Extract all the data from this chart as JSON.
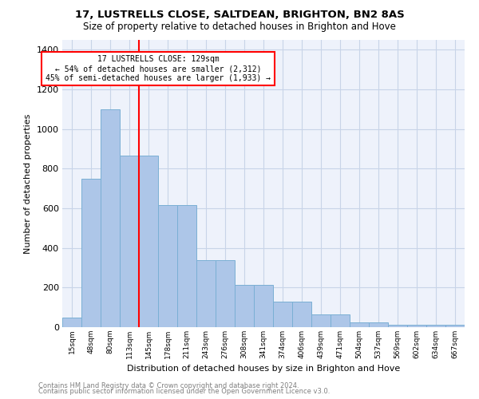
{
  "title1": "17, LUSTRELLS CLOSE, SALTDEAN, BRIGHTON, BN2 8AS",
  "title2": "Size of property relative to detached houses in Brighton and Hove",
  "xlabel": "Distribution of detached houses by size in Brighton and Hove",
  "ylabel": "Number of detached properties",
  "categories": [
    "15sqm",
    "48sqm",
    "80sqm",
    "113sqm",
    "145sqm",
    "178sqm",
    "211sqm",
    "243sqm",
    "276sqm",
    "308sqm",
    "341sqm",
    "374sqm",
    "406sqm",
    "439sqm",
    "471sqm",
    "504sqm",
    "537sqm",
    "569sqm",
    "602sqm",
    "634sqm",
    "667sqm"
  ],
  "values": [
    50,
    750,
    1100,
    865,
    865,
    615,
    615,
    340,
    340,
    215,
    215,
    130,
    130,
    65,
    65,
    25,
    25,
    13,
    13,
    13,
    13
  ],
  "bar_color": "#adc6e8",
  "bar_edge_color": "#7aafd4",
  "annotation_text_line1": "17 LUSTRELLS CLOSE: 129sqm",
  "annotation_text_line2": "← 54% of detached houses are smaller (2,312)",
  "annotation_text_line3": "45% of semi-detached houses are larger (1,933) →",
  "footnote1": "Contains HM Land Registry data © Crown copyright and database right 2024.",
  "footnote2": "Contains public sector information licensed under the Open Government Licence v3.0.",
  "ylim": [
    0,
    1450
  ],
  "background_color": "#eef2fb",
  "vertical_line_x": 3.5
}
